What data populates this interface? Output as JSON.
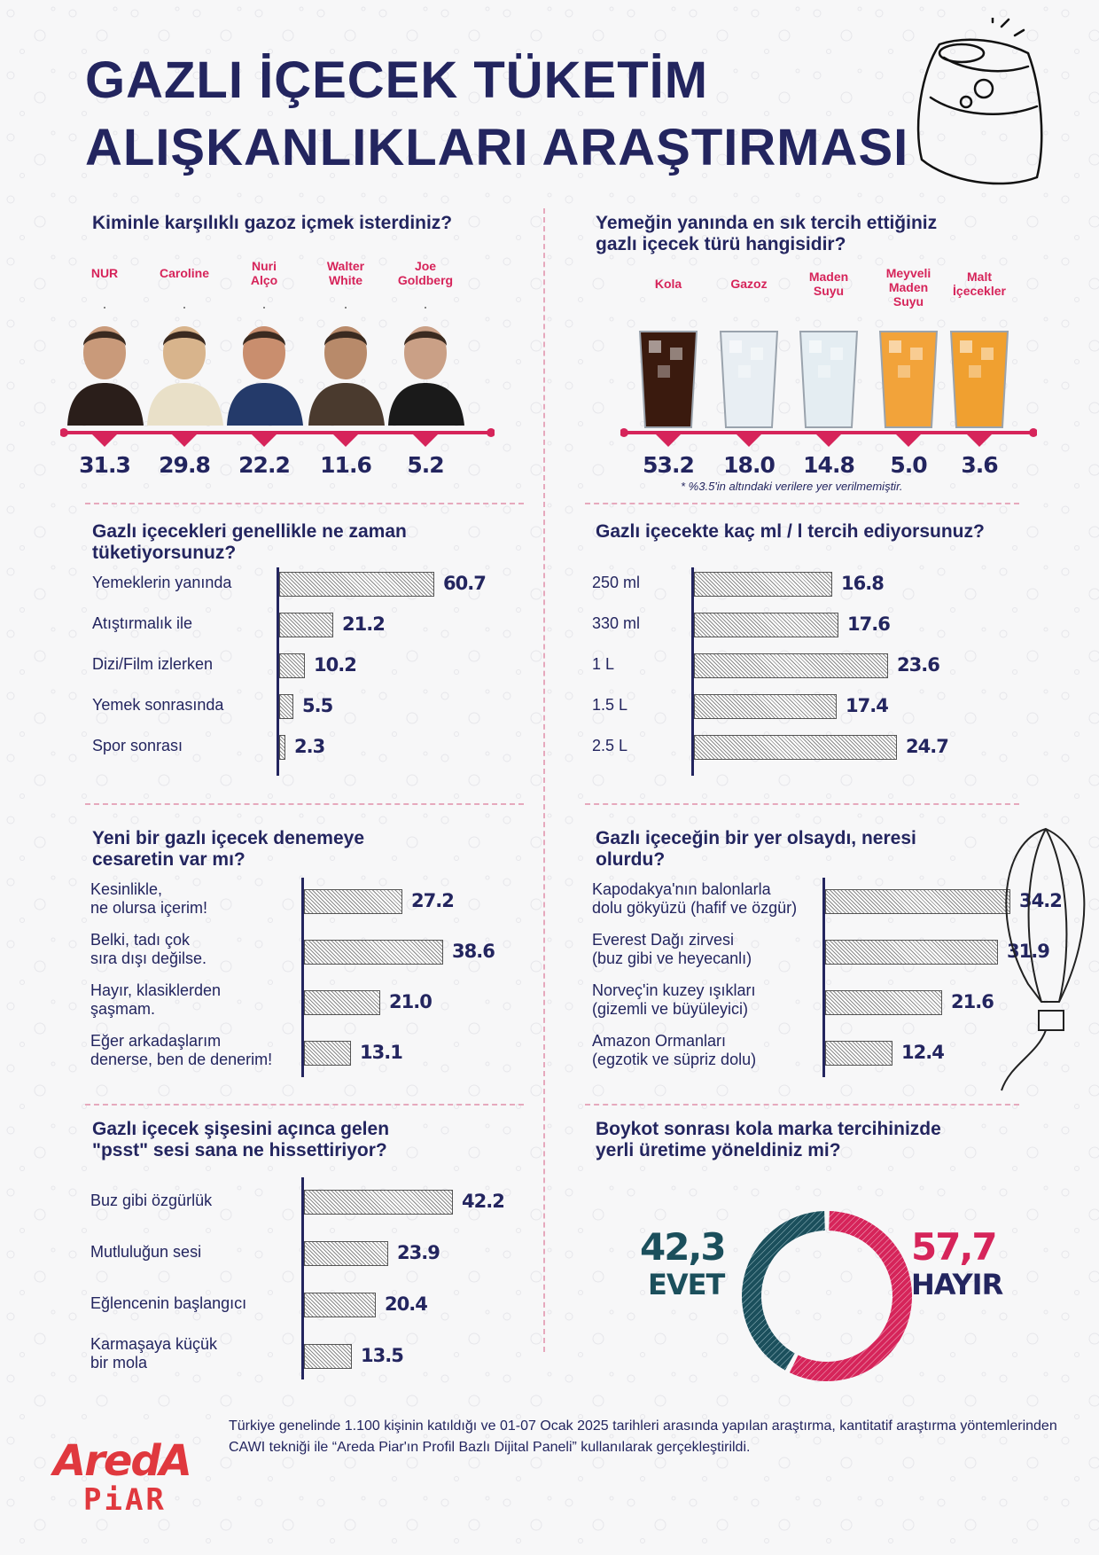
{
  "title_line1": "GAZLI İÇECEK TÜKETİM",
  "title_line2": "ALIŞKANLIKLARI ARAŞTIRMASI",
  "colors": {
    "navy": "#23255f",
    "red": "#d6245a",
    "teal": "#1b4f5c"
  },
  "q1": {
    "question": "Kiminle karşılıklı gazoz içmek isterdiniz?",
    "names": [
      "NUR",
      "Caroline",
      "Nuri\nAlço",
      "Walter\nWhite",
      "Joe\nGoldberg"
    ],
    "values": [
      "31.3",
      "29.8",
      "22.2",
      "11.6",
      "5.2"
    ]
  },
  "q2": {
    "question_l1": "Yemeğin yanında en sık tercih ettiğiniz",
    "question_l2": "gazlı içecek türü hangisidir?",
    "names": [
      "Kola",
      "Gazoz",
      "Maden\nSuyu",
      "Meyveli\nMaden\nSuyu",
      "Malt\nİçecekler"
    ],
    "values": [
      "53.2",
      "18.0",
      "14.8",
      "5.0",
      "3.6"
    ],
    "note": "* %3.5'in altındaki verilere yer verilmemiştir."
  },
  "chart_data": [
    {
      "type": "bar",
      "title": "Gazlı içecekleri genellikle ne zaman tüketiyorsunuz?",
      "categories": [
        "Yemeklerin yanında",
        "Atıştırmalık ile",
        "Dizi/Film izlerken",
        "Yemek sonrasında",
        "Spor sonrası"
      ],
      "values": [
        60.7,
        21.2,
        10.2,
        5.5,
        2.3
      ]
    },
    {
      "type": "bar",
      "title": "Gazlı içecekte kaç ml / l tercih ediyorsunuz?",
      "categories": [
        "250 ml",
        "330 ml",
        "1 L",
        "1.5 L",
        "2.5 L"
      ],
      "values": [
        16.8,
        17.6,
        23.6,
        17.4,
        24.7
      ]
    },
    {
      "type": "bar",
      "title": "Yeni bir gazlı içecek denemeye cesaretin var mı?",
      "categories": [
        "Kesinlikle,\nne olursa içerim!",
        "Belki, tadı çok\nsıra dışı değilse.",
        "Hayır, klasiklerden\nşaşmam.",
        "Eğer arkadaşlarım\ndenerse, ben de denerim!"
      ],
      "values": [
        27.2,
        38.6,
        21.0,
        13.1
      ]
    },
    {
      "type": "bar",
      "title": "Gazlı içeceğin bir yer olsaydı, neresi olurdu?",
      "categories": [
        "Kapodakya'nın balonlarla\ndolu gökyüzü (hafif ve özgür)",
        "Everest Dağı zirvesi\n(buz gibi ve heyecanlı)",
        "Norveç'in kuzey ışıkları\n(gizemli ve büyüleyici)",
        "Amazon Ormanları\n(egzotik ve süpriz dolu)"
      ],
      "values": [
        34.2,
        31.9,
        21.6,
        12.4
      ]
    },
    {
      "type": "bar",
      "title": "Gazlı içecek şişesini açınca gelen \"psst\" sesi sana ne hissettiriyor?",
      "categories": [
        "Buz gibi özgürlük",
        "Mutluluğun sesi",
        "Eğlencenin başlangıcı",
        "Karmaşaya küçük\nbir mola"
      ],
      "values": [
        42.2,
        23.9,
        20.4,
        13.5
      ]
    },
    {
      "type": "pie",
      "title": "Boykot sonrası kola marka tercihinizde yerli üretime yöneldiniz mi?",
      "categories": [
        "EVET",
        "HAYIR"
      ],
      "values": [
        42.3,
        57.7
      ],
      "value_labels": [
        "42,3",
        "57,7"
      ]
    }
  ],
  "texts": {
    "q3_l1": "Gazlı içecekleri genellikle ne zaman",
    "q3_l2": "tüketiyorsunuz?",
    "q4": "Gazlı içecekte kaç ml / l tercih ediyorsunuz?",
    "q5_l1": "Yeni bir gazlı içecek denemeye",
    "q5_l2": "cesaretin var mı?",
    "q6_l1": "Gazlı içeceğin bir yer olsaydı, neresi",
    "q6_l2": "olurdu?",
    "q7_l1": "Gazlı içecek şişesini açınca gelen",
    "q7_l2": "\"psst\" sesi sana ne hissettiriyor?",
    "q8_l1": "Boykot sonrası kola marka tercihinizde",
    "q8_l2": "yerli üretime yöneldiniz mi?"
  },
  "logo": {
    "top": "AredA",
    "bottom": "PiAR"
  },
  "footer": "Türkiye genelinde 1.100 kişinin katıldığı ve 01-07 Ocak 2025  tarihleri arasında yapılan araştırma, kantitatif araştırma yöntemlerinden CAWI tekniği ile “Areda Piar'ın Profil Bazlı Dijital Paneli” kullanılarak gerçekleştirildi."
}
